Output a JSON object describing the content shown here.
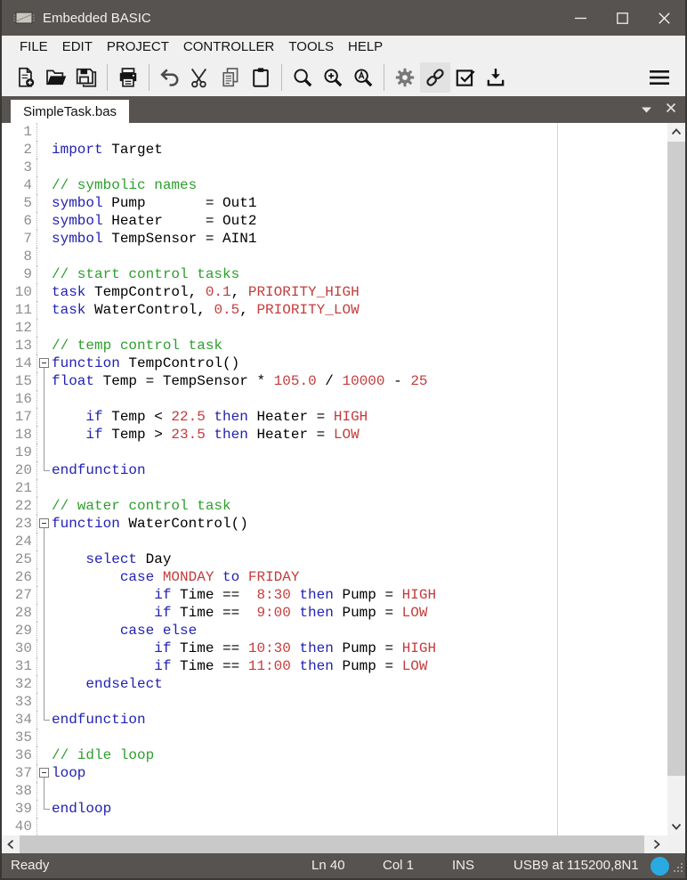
{
  "window": {
    "title": "Embedded BASIC"
  },
  "colors": {
    "chrome": "#575350",
    "toolbar_bg": "#f0f0f0",
    "editor_bg": "#ffffff",
    "keyword": "#2222B2",
    "comment": "#2E9E2E",
    "literal": "#C43C3C",
    "line_number": "#8f8f8f",
    "accent": "#29ABE2"
  },
  "menu": {
    "items": [
      {
        "label": "FILE"
      },
      {
        "label": "EDIT"
      },
      {
        "label": "PROJECT"
      },
      {
        "label": "CONTROLLER"
      },
      {
        "label": "TOOLS"
      },
      {
        "label": "HELP"
      }
    ]
  },
  "toolbar": {
    "buttons": [
      "new-file",
      "open-file",
      "save-file",
      "print",
      "undo",
      "cut",
      "copy",
      "paste",
      "search",
      "zoom-in",
      "find-text",
      "settings",
      "connect",
      "verify",
      "download",
      "menu"
    ],
    "active_button": "connect"
  },
  "tabs": {
    "active": "SimpleTask.bas"
  },
  "editor": {
    "lines": [
      {
        "n": 1,
        "f": "",
        "s": []
      },
      {
        "n": 2,
        "f": "",
        "s": [
          [
            "k",
            "import"
          ],
          [
            "p",
            " Target"
          ]
        ]
      },
      {
        "n": 3,
        "f": "",
        "s": []
      },
      {
        "n": 4,
        "f": "",
        "s": [
          [
            "c",
            "// symbolic names"
          ]
        ]
      },
      {
        "n": 5,
        "f": "",
        "s": [
          [
            "k",
            "symbol"
          ],
          [
            "p",
            " Pump       = Out1"
          ]
        ]
      },
      {
        "n": 6,
        "f": "",
        "s": [
          [
            "k",
            "symbol"
          ],
          [
            "p",
            " Heater     = Out2"
          ]
        ]
      },
      {
        "n": 7,
        "f": "",
        "s": [
          [
            "k",
            "symbol"
          ],
          [
            "p",
            " TempSensor = AIN1"
          ]
        ]
      },
      {
        "n": 8,
        "f": "",
        "s": []
      },
      {
        "n": 9,
        "f": "",
        "s": [
          [
            "c",
            "// start control tasks"
          ]
        ]
      },
      {
        "n": 10,
        "f": "",
        "s": [
          [
            "k",
            "task"
          ],
          [
            "p",
            " TempControl, "
          ],
          [
            "r",
            "0.1"
          ],
          [
            "p",
            ", "
          ],
          [
            "r",
            "PRIORITY_HIGH"
          ]
        ]
      },
      {
        "n": 11,
        "f": "",
        "s": [
          [
            "k",
            "task"
          ],
          [
            "p",
            " WaterControl, "
          ],
          [
            "r",
            "0.5"
          ],
          [
            "p",
            ", "
          ],
          [
            "r",
            "PRIORITY_LOW"
          ]
        ]
      },
      {
        "n": 12,
        "f": "",
        "s": []
      },
      {
        "n": 13,
        "f": "",
        "s": [
          [
            "c",
            "// temp control task"
          ]
        ]
      },
      {
        "n": 14,
        "f": "start",
        "s": [
          [
            "k",
            "function"
          ],
          [
            "p",
            " TempControl()"
          ]
        ]
      },
      {
        "n": 15,
        "f": "mid",
        "s": [
          [
            "k",
            "float"
          ],
          [
            "p",
            " Temp = TempSensor * "
          ],
          [
            "r",
            "105.0"
          ],
          [
            "p",
            " / "
          ],
          [
            "r",
            "10000"
          ],
          [
            "p",
            " - "
          ],
          [
            "r",
            "25"
          ]
        ]
      },
      {
        "n": 16,
        "f": "mid",
        "s": []
      },
      {
        "n": 17,
        "f": "mid",
        "s": [
          [
            "p",
            "    "
          ],
          [
            "k",
            "if"
          ],
          [
            "p",
            " Temp < "
          ],
          [
            "r",
            "22.5"
          ],
          [
            "p",
            " "
          ],
          [
            "k",
            "then"
          ],
          [
            "p",
            " Heater = "
          ],
          [
            "r",
            "HIGH"
          ]
        ]
      },
      {
        "n": 18,
        "f": "mid",
        "s": [
          [
            "p",
            "    "
          ],
          [
            "k",
            "if"
          ],
          [
            "p",
            " Temp > "
          ],
          [
            "r",
            "23.5"
          ],
          [
            "p",
            " "
          ],
          [
            "k",
            "then"
          ],
          [
            "p",
            " Heater = "
          ],
          [
            "r",
            "LOW"
          ]
        ]
      },
      {
        "n": 19,
        "f": "mid",
        "s": []
      },
      {
        "n": 20,
        "f": "end",
        "s": [
          [
            "k",
            "endfunction"
          ]
        ]
      },
      {
        "n": 21,
        "f": "",
        "s": []
      },
      {
        "n": 22,
        "f": "",
        "s": [
          [
            "c",
            "// water control task"
          ]
        ]
      },
      {
        "n": 23,
        "f": "start",
        "s": [
          [
            "k",
            "function"
          ],
          [
            "p",
            " WaterControl()"
          ]
        ]
      },
      {
        "n": 24,
        "f": "mid",
        "s": []
      },
      {
        "n": 25,
        "f": "mid",
        "s": [
          [
            "p",
            "    "
          ],
          [
            "k",
            "select"
          ],
          [
            "p",
            " Day"
          ]
        ]
      },
      {
        "n": 26,
        "f": "mid",
        "s": [
          [
            "p",
            "        "
          ],
          [
            "k",
            "case"
          ],
          [
            "p",
            " "
          ],
          [
            "r",
            "MONDAY"
          ],
          [
            "p",
            " "
          ],
          [
            "k",
            "to"
          ],
          [
            "p",
            " "
          ],
          [
            "r",
            "FRIDAY"
          ]
        ]
      },
      {
        "n": 27,
        "f": "mid",
        "s": [
          [
            "p",
            "            "
          ],
          [
            "k",
            "if"
          ],
          [
            "p",
            " Time ==  "
          ],
          [
            "r",
            "8:30"
          ],
          [
            "p",
            " "
          ],
          [
            "k",
            "then"
          ],
          [
            "p",
            " Pump = "
          ],
          [
            "r",
            "HIGH"
          ]
        ]
      },
      {
        "n": 28,
        "f": "mid",
        "s": [
          [
            "p",
            "            "
          ],
          [
            "k",
            "if"
          ],
          [
            "p",
            " Time ==  "
          ],
          [
            "r",
            "9:00"
          ],
          [
            "p",
            " "
          ],
          [
            "k",
            "then"
          ],
          [
            "p",
            " Pump = "
          ],
          [
            "r",
            "LOW"
          ]
        ]
      },
      {
        "n": 29,
        "f": "mid",
        "s": [
          [
            "p",
            "        "
          ],
          [
            "k",
            "case else"
          ]
        ]
      },
      {
        "n": 30,
        "f": "mid",
        "s": [
          [
            "p",
            "            "
          ],
          [
            "k",
            "if"
          ],
          [
            "p",
            " Time == "
          ],
          [
            "r",
            "10:30"
          ],
          [
            "p",
            " "
          ],
          [
            "k",
            "then"
          ],
          [
            "p",
            " Pump = "
          ],
          [
            "r",
            "HIGH"
          ]
        ]
      },
      {
        "n": 31,
        "f": "mid",
        "s": [
          [
            "p",
            "            "
          ],
          [
            "k",
            "if"
          ],
          [
            "p",
            " Time == "
          ],
          [
            "r",
            "11:00"
          ],
          [
            "p",
            " "
          ],
          [
            "k",
            "then"
          ],
          [
            "p",
            " Pump = "
          ],
          [
            "r",
            "LOW"
          ]
        ]
      },
      {
        "n": 32,
        "f": "mid",
        "s": [
          [
            "p",
            "    "
          ],
          [
            "k",
            "endselect"
          ]
        ]
      },
      {
        "n": 33,
        "f": "mid",
        "s": []
      },
      {
        "n": 34,
        "f": "end",
        "s": [
          [
            "k",
            "endfunction"
          ]
        ]
      },
      {
        "n": 35,
        "f": "",
        "s": []
      },
      {
        "n": 36,
        "f": "",
        "s": [
          [
            "c",
            "// idle loop"
          ]
        ]
      },
      {
        "n": 37,
        "f": "start",
        "s": [
          [
            "k",
            "loop"
          ]
        ]
      },
      {
        "n": 38,
        "f": "mid",
        "s": []
      },
      {
        "n": 39,
        "f": "end",
        "s": [
          [
            "k",
            "endloop"
          ]
        ]
      },
      {
        "n": 40,
        "f": "",
        "s": []
      }
    ]
  },
  "status": {
    "ready": "Ready",
    "line": "Ln 40",
    "column": "Col 1",
    "mode": "INS",
    "connection": "USB9 at 115200,8N1"
  }
}
